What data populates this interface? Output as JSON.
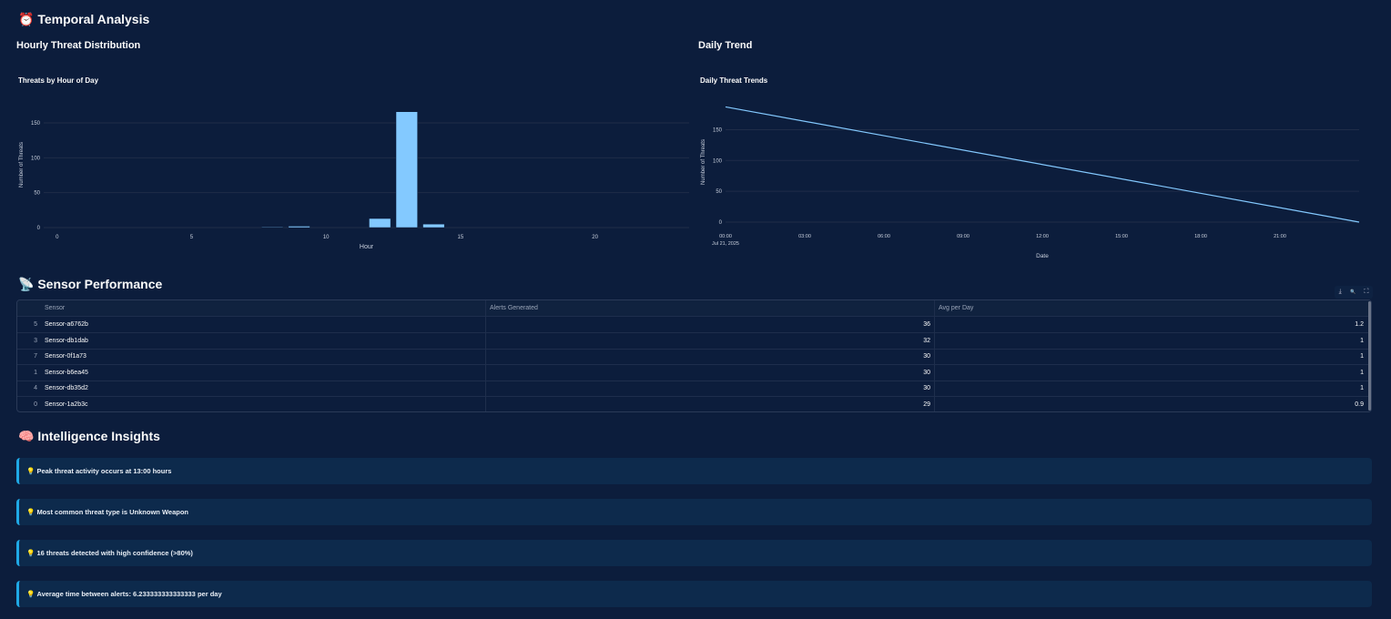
{
  "temporal": {
    "title": "Temporal Analysis",
    "icon": "⏰",
    "hourly_heading": "Hourly Threat Distribution",
    "daily_heading": "Daily Trend"
  },
  "chart_data": [
    {
      "type": "bar",
      "title": "Threats by Hour of Day",
      "xlabel": "Hour",
      "ylabel": "Number of Threats",
      "x": [
        8,
        9,
        12,
        13,
        14
      ],
      "values": [
        1,
        2,
        13,
        166,
        5
      ],
      "xlim": [
        -0.5,
        23.5
      ],
      "ylim": [
        0,
        180
      ],
      "xticks": [
        0,
        5,
        10,
        15,
        20
      ],
      "yticks": [
        0,
        50,
        100,
        150
      ],
      "color": "#83c9ff",
      "grid": true
    },
    {
      "type": "line",
      "title": "Daily Threat Trends",
      "xlabel": "Date",
      "ylabel": "Number of Threats",
      "x": [
        "2025-07-21 00:00",
        "2025-07-22 00:00"
      ],
      "values": [
        187,
        0
      ],
      "xticks": [
        "00:00",
        "03:00",
        "06:00",
        "09:00",
        "12:00",
        "15:00",
        "18:00",
        "21:00"
      ],
      "xtick_sub": "Jul 21, 2025",
      "yticks": [
        0,
        50,
        100,
        150
      ],
      "ylim": [
        0,
        195
      ],
      "color": "#83c9ff",
      "grid": true
    }
  ],
  "sensor": {
    "title": "Sensor Performance",
    "icon": "📡",
    "columns": [
      "",
      "Sensor",
      "Alerts Generated",
      "Avg per Day"
    ],
    "rows": [
      [
        "5",
        "Sensor-a6762b",
        "36",
        "1.2"
      ],
      [
        "3",
        "Sensor-db1dab",
        "32",
        "1"
      ],
      [
        "7",
        "Sensor-0f1a73",
        "30",
        "1"
      ],
      [
        "1",
        "Sensor-b6ea45",
        "30",
        "1"
      ],
      [
        "4",
        "Sensor-db35d2",
        "30",
        "1"
      ],
      [
        "0",
        "Sensor-1a2b3c",
        "29",
        "0.9"
      ]
    ],
    "toolbar": {
      "download": "⤓",
      "search": "🔍",
      "fullscreen": "⛶"
    }
  },
  "insights": {
    "title": "Intelligence Insights",
    "icon": "🧠",
    "bulb": "💡",
    "items": [
      "Peak threat activity occurs at 13:00 hours",
      "Most common threat type is Unknown Weapon",
      "16 threats detected with high confidence (>80%)",
      "Average time between alerts: 6.233333333333333 per day"
    ]
  }
}
